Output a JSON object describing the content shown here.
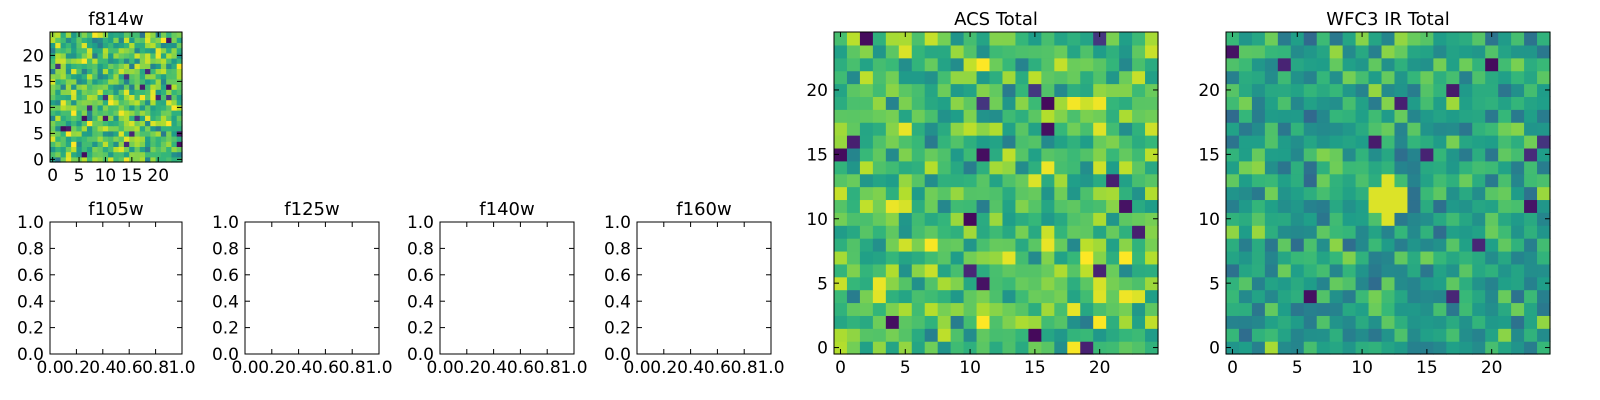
{
  "chart_data": [
    {
      "type": "heatmap",
      "title": "f814w",
      "xlabel": "",
      "ylabel": "",
      "xlim": [
        -0.5,
        24.5
      ],
      "ylim": [
        -0.5,
        24.5
      ],
      "grid_size": 25,
      "x_ticks": [
        0,
        5,
        10,
        15,
        20
      ],
      "y_ticks": [
        0,
        5,
        10,
        15,
        20
      ],
      "colormap": "viridis",
      "seed": 814,
      "mean": 0.72,
      "spread": 0.22,
      "hot_spot": null
    },
    {
      "type": "empty",
      "title": "f105w",
      "xlim": [
        0,
        1
      ],
      "ylim": [
        0,
        1
      ],
      "x_ticks": [
        "0.0",
        "0.2",
        "0.4",
        "0.6",
        "0.8",
        "1.0"
      ],
      "y_ticks": [
        "0.0",
        "0.2",
        "0.4",
        "0.6",
        "0.8",
        "1.0"
      ]
    },
    {
      "type": "empty",
      "title": "f125w",
      "xlim": [
        0,
        1
      ],
      "ylim": [
        0,
        1
      ],
      "x_ticks": [
        "0.0",
        "0.2",
        "0.4",
        "0.6",
        "0.8",
        "1.0"
      ],
      "y_ticks": [
        "0.0",
        "0.2",
        "0.4",
        "0.6",
        "0.8",
        "1.0"
      ]
    },
    {
      "type": "empty",
      "title": "f140w",
      "xlim": [
        0,
        1
      ],
      "ylim": [
        0,
        1
      ],
      "x_ticks": [
        "0.0",
        "0.2",
        "0.4",
        "0.6",
        "0.8",
        "1.0"
      ],
      "y_ticks": [
        "0.0",
        "0.2",
        "0.4",
        "0.6",
        "0.8",
        "1.0"
      ]
    },
    {
      "type": "empty",
      "title": "f160w",
      "xlim": [
        0,
        1
      ],
      "ylim": [
        0,
        1
      ],
      "x_ticks": [
        "0.0",
        "0.2",
        "0.4",
        "0.6",
        "0.8",
        "1.0"
      ],
      "y_ticks": [
        "0.0",
        "0.2",
        "0.4",
        "0.6",
        "0.8",
        "1.0"
      ]
    },
    {
      "type": "heatmap",
      "title": "ACS Total",
      "xlim": [
        -0.5,
        24.5
      ],
      "ylim": [
        -0.5,
        24.5
      ],
      "grid_size": 25,
      "x_ticks": [
        0,
        5,
        10,
        15,
        20
      ],
      "y_ticks": [
        0,
        5,
        10,
        15,
        20
      ],
      "colormap": "viridis",
      "seed": 2024,
      "mean": 0.72,
      "spread": 0.2,
      "hot_spot": null
    },
    {
      "type": "heatmap",
      "title": "WFC3 IR Total",
      "xlim": [
        -0.5,
        24.5
      ],
      "ylim": [
        -0.5,
        24.5
      ],
      "grid_size": 25,
      "x_ticks": [
        0,
        5,
        10,
        15,
        20
      ],
      "y_ticks": [
        0,
        5,
        10,
        15,
        20
      ],
      "colormap": "viridis",
      "seed": 3160,
      "mean": 0.6,
      "spread": 0.17,
      "hot_spot": {
        "x": 12,
        "y": 11.5,
        "peak": 0.95,
        "radius": 1.6
      }
    }
  ]
}
